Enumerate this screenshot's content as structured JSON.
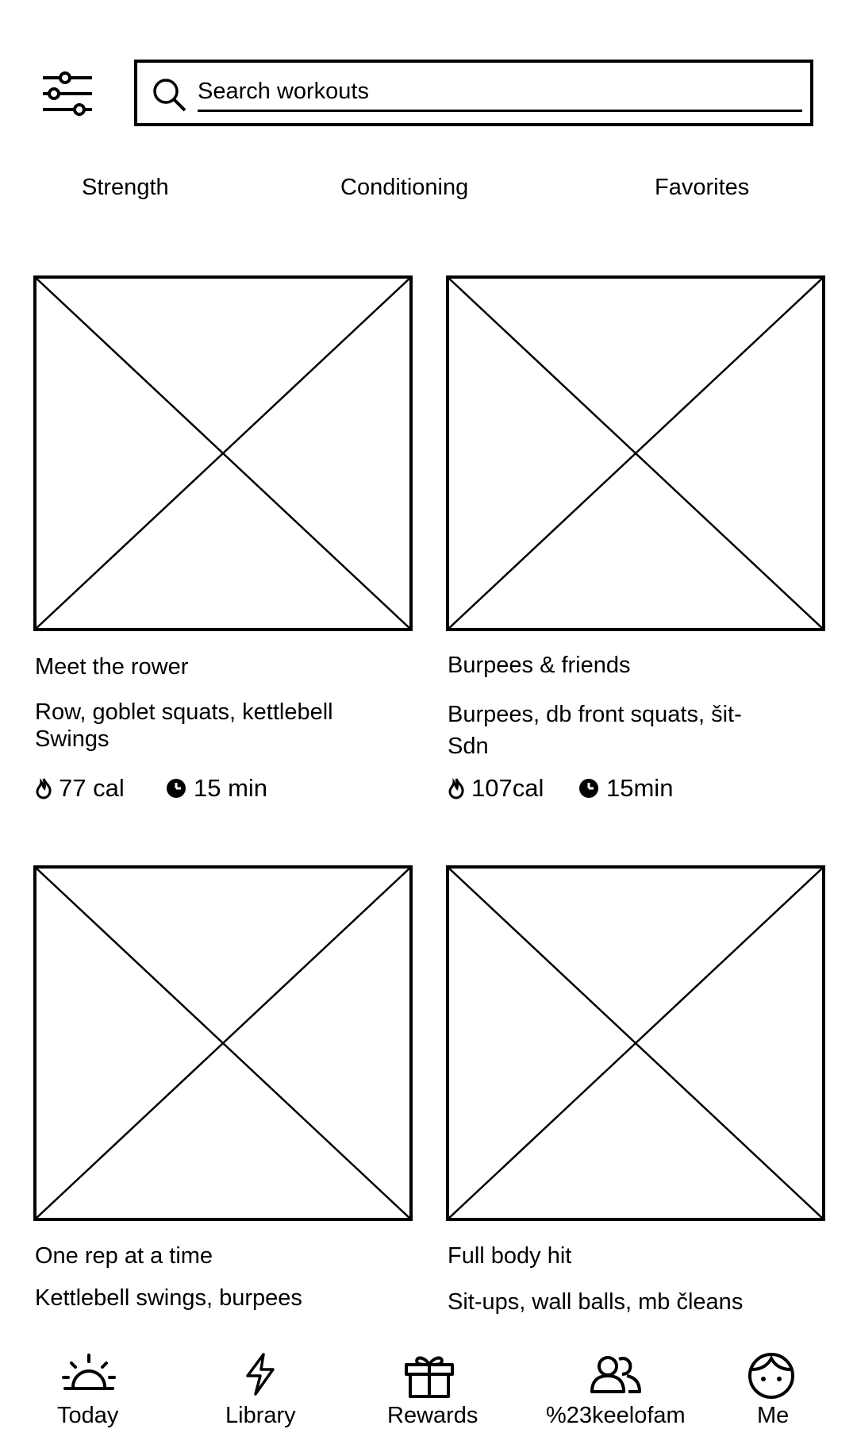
{
  "header": {
    "filter_icon": "sliders-icon",
    "search": {
      "icon": "search-icon",
      "placeholder": "Search workouts",
      "value": ""
    }
  },
  "tabs": [
    {
      "label": "Strength"
    },
    {
      "label": "Conditioning"
    },
    {
      "label": "Favorites"
    }
  ],
  "workouts": [
    {
      "title": "Meet the rower",
      "description": "Row, goblet squats, kettlebell Swings",
      "calories": "77 cal",
      "duration": "15 min",
      "image_icon": "image-placeholder-icon"
    },
    {
      "title": "Burpees & friends",
      "description": "Burpees, db front squats, šit-Sdn",
      "calories": "107cal",
      "duration": "15min",
      "image_icon": "image-placeholder-icon"
    },
    {
      "title": "One rep at a time",
      "description": "Kettlebell swings, burpees",
      "image_icon": "image-placeholder-icon"
    },
    {
      "title": "Full body hit",
      "description": "Sit-ups, wall balls, mb čleans",
      "image_icon": "image-placeholder-icon"
    }
  ],
  "bottom_nav": [
    {
      "label": "Today",
      "icon": "sunrise-icon"
    },
    {
      "label": "Library",
      "icon": "lightning-icon"
    },
    {
      "label": "Rewards",
      "icon": "gift-icon"
    },
    {
      "label": "%23keelofam",
      "icon": "people-icon"
    },
    {
      "label": "Me",
      "icon": "face-icon"
    }
  ]
}
